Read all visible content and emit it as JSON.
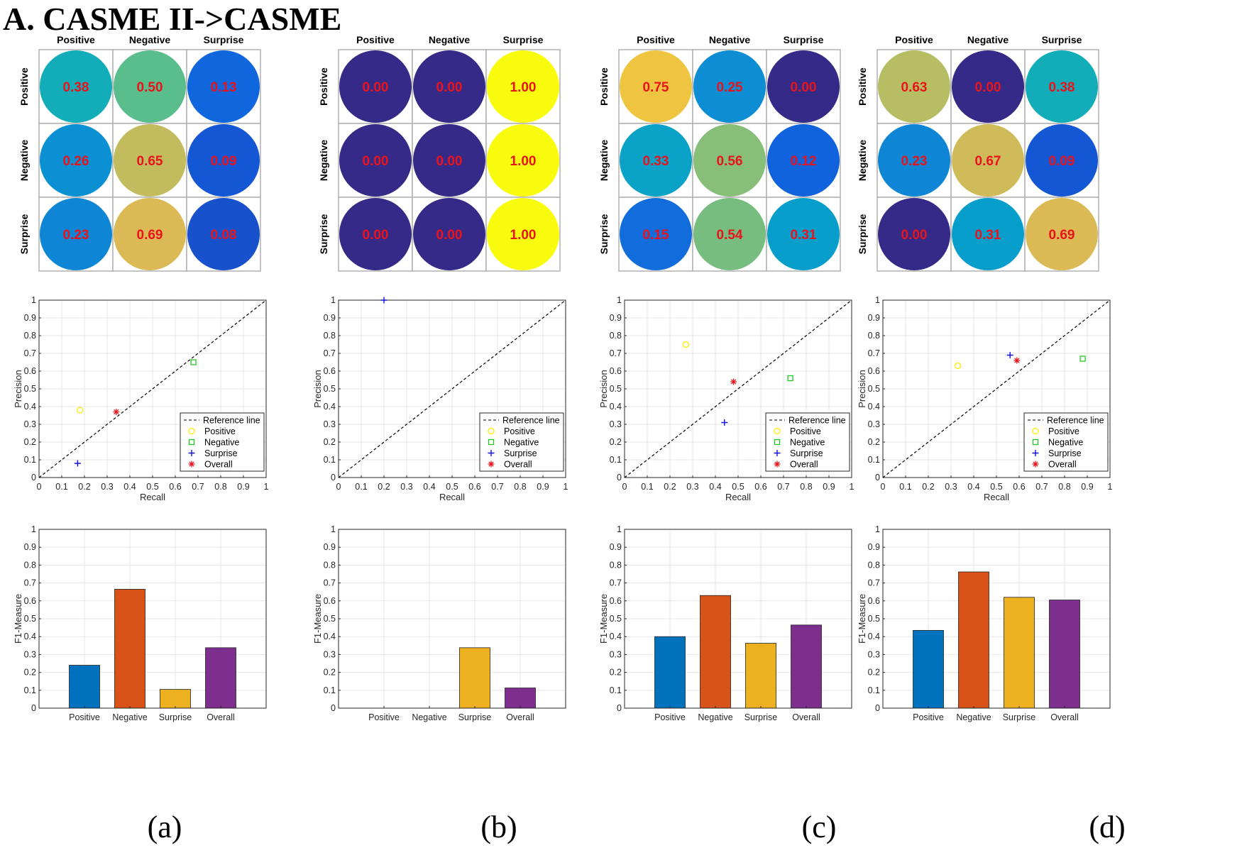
{
  "figure": {
    "title": "A. CASME II->CASME",
    "panel_labels": [
      "(a)",
      "(b)",
      "(c)",
      "(d)"
    ]
  },
  "colors": {
    "positive": "#FFEA00",
    "negative": "#1FC81F",
    "surprise": "#1010E0",
    "overall": "#E8141C",
    "bar_positive": "#0072BD",
    "bar_negative": "#D95319",
    "bar_surprise": "#EDB120",
    "bar_overall": "#7E2F8E",
    "cm_value_text": "#E8141C"
  },
  "chart_data": [
    {
      "panel": "(a)",
      "confusion_matrix": {
        "type": "heatmap",
        "classes": [
          "Positive",
          "Negative",
          "Surprise"
        ],
        "values": [
          [
            0.38,
            0.5,
            0.13
          ],
          [
            0.26,
            0.65,
            0.09
          ],
          [
            0.23,
            0.69,
            0.08
          ]
        ],
        "labels": [
          [
            "0.38",
            "0.50",
            "0.13"
          ],
          [
            "0.26",
            "0.65",
            "0.09"
          ],
          [
            "0.23",
            "0.69",
            "0.08"
          ]
        ]
      },
      "precision_recall": {
        "type": "scatter",
        "xlabel": "Recall",
        "ylabel": "Precision",
        "xlim": [
          0,
          1
        ],
        "ylim": [
          0,
          1
        ],
        "ticks": [
          "0",
          "0.1",
          "0.2",
          "0.3",
          "0.4",
          "0.5",
          "0.6",
          "0.7",
          "0.8",
          "0.9",
          "1"
        ],
        "grid": true,
        "legend_position": "bottom-right",
        "legend": [
          "Reference line",
          "Positive",
          "Negative",
          "Surprise",
          "Overall"
        ],
        "points": {
          "Positive": [
            0.18,
            0.38
          ],
          "Negative": [
            0.68,
            0.65
          ],
          "Surprise": [
            0.17,
            0.08
          ],
          "Overall": [
            0.34,
            0.37
          ]
        }
      },
      "f1": {
        "type": "bar",
        "ylabel": "F1-Measure",
        "ylim": [
          0,
          1
        ],
        "ticks": [
          "0",
          "0.1",
          "0.2",
          "0.3",
          "0.4",
          "0.5",
          "0.6",
          "0.7",
          "0.8",
          "0.9",
          "1"
        ],
        "categories": [
          "Positive",
          "Negative",
          "Surprise",
          "Overall"
        ],
        "values": [
          0.24,
          0.665,
          0.105,
          0.338
        ]
      }
    },
    {
      "panel": "(b)",
      "confusion_matrix": {
        "type": "heatmap",
        "classes": [
          "Positive",
          "Negative",
          "Surprise"
        ],
        "values": [
          [
            0.0,
            0.0,
            1.0
          ],
          [
            0.0,
            0.0,
            1.0
          ],
          [
            0.0,
            0.0,
            1.0
          ]
        ],
        "labels": [
          [
            "0.00",
            "0.00",
            "1.00"
          ],
          [
            "0.00",
            "0.00",
            "1.00"
          ],
          [
            "0.00",
            "0.00",
            "1.00"
          ]
        ]
      },
      "precision_recall": {
        "type": "scatter",
        "xlabel": "Recall",
        "ylabel": "Precision",
        "xlim": [
          0,
          1
        ],
        "ylim": [
          0,
          1
        ],
        "ticks": [
          "0",
          "0.1",
          "0.2",
          "0.3",
          "0.4",
          "0.5",
          "0.6",
          "0.7",
          "0.8",
          "0.9",
          "1"
        ],
        "grid": true,
        "legend_position": "bottom-right",
        "legend": [
          "Reference line",
          "Positive",
          "Negative",
          "Surprise",
          "Overall"
        ],
        "points": {
          "Surprise": [
            0.2,
            1.0
          ]
        }
      },
      "f1": {
        "type": "bar",
        "ylabel": "F1-Measure",
        "ylim": [
          0,
          1
        ],
        "ticks": [
          "0",
          "0.1",
          "0.2",
          "0.3",
          "0.4",
          "0.5",
          "0.6",
          "0.7",
          "0.8",
          "0.9",
          "1"
        ],
        "categories": [
          "Positive",
          "Negative",
          "Surprise",
          "Overall"
        ],
        "values": [
          0,
          0,
          0.338,
          0.113
        ]
      }
    },
    {
      "panel": "(c)",
      "confusion_matrix": {
        "type": "heatmap",
        "classes": [
          "Positive",
          "Negative",
          "Surprise"
        ],
        "values": [
          [
            0.75,
            0.25,
            0.0
          ],
          [
            0.33,
            0.56,
            0.12
          ],
          [
            0.15,
            0.54,
            0.31
          ]
        ],
        "labels": [
          [
            "0.75",
            "0.25",
            "0.00"
          ],
          [
            "0.33",
            "0.56",
            "0.12"
          ],
          [
            "0.15",
            "0.54",
            "0.31"
          ]
        ]
      },
      "precision_recall": {
        "type": "scatter",
        "xlabel": "Recall",
        "ylabel": "Precision",
        "xlim": [
          0,
          1
        ],
        "ylim": [
          0,
          1
        ],
        "ticks": [
          "0",
          "0.1",
          "0.2",
          "0.3",
          "0.4",
          "0.5",
          "0.6",
          "0.7",
          "0.8",
          "0.9",
          "1"
        ],
        "grid": true,
        "legend_position": "bottom-right",
        "legend": [
          "Reference line",
          "Positive",
          "Negative",
          "Surprise",
          "Overall"
        ],
        "points": {
          "Positive": [
            0.27,
            0.75
          ],
          "Negative": [
            0.73,
            0.56
          ],
          "Surprise": [
            0.44,
            0.31
          ],
          "Overall": [
            0.48,
            0.54
          ]
        }
      },
      "f1": {
        "type": "bar",
        "ylabel": "F1-Measure",
        "ylim": [
          0,
          1
        ],
        "ticks": [
          "0",
          "0.1",
          "0.2",
          "0.3",
          "0.4",
          "0.5",
          "0.6",
          "0.7",
          "0.8",
          "0.9",
          "1"
        ],
        "categories": [
          "Positive",
          "Negative",
          "Surprise",
          "Overall"
        ],
        "values": [
          0.4,
          0.63,
          0.363,
          0.465
        ]
      }
    },
    {
      "panel": "(d)",
      "confusion_matrix": {
        "type": "heatmap",
        "classes": [
          "Positive",
          "Negative",
          "Surprise"
        ],
        "values": [
          [
            0.63,
            0.0,
            0.38
          ],
          [
            0.23,
            0.67,
            0.09
          ],
          [
            0.0,
            0.31,
            0.69
          ]
        ],
        "labels": [
          [
            "0.63",
            "0.00",
            "0.38"
          ],
          [
            "0.23",
            "0.67",
            "0.09"
          ],
          [
            "0.00",
            "0.31",
            "0.69"
          ]
        ]
      },
      "precision_recall": {
        "type": "scatter",
        "xlabel": "Recall",
        "ylabel": "Precision",
        "xlim": [
          0,
          1
        ],
        "ylim": [
          0,
          1
        ],
        "ticks": [
          "0",
          "0.1",
          "0.2",
          "0.3",
          "0.4",
          "0.5",
          "0.6",
          "0.7",
          "0.8",
          "0.9",
          "1"
        ],
        "grid": true,
        "legend_position": "bottom-right",
        "legend": [
          "Reference line",
          "Positive",
          "Negative",
          "Surprise",
          "Overall"
        ],
        "points": {
          "Positive": [
            0.33,
            0.63
          ],
          "Negative": [
            0.88,
            0.67
          ],
          "Surprise": [
            0.56,
            0.69
          ],
          "Overall": [
            0.59,
            0.66
          ]
        }
      },
      "f1": {
        "type": "bar",
        "ylabel": "F1-Measure",
        "ylim": [
          0,
          1
        ],
        "ticks": [
          "0",
          "0.1",
          "0.2",
          "0.3",
          "0.4",
          "0.5",
          "0.6",
          "0.7",
          "0.8",
          "0.9",
          "1"
        ],
        "categories": [
          "Positive",
          "Negative",
          "Surprise",
          "Overall"
        ],
        "values": [
          0.435,
          0.762,
          0.62,
          0.605
        ]
      }
    }
  ]
}
